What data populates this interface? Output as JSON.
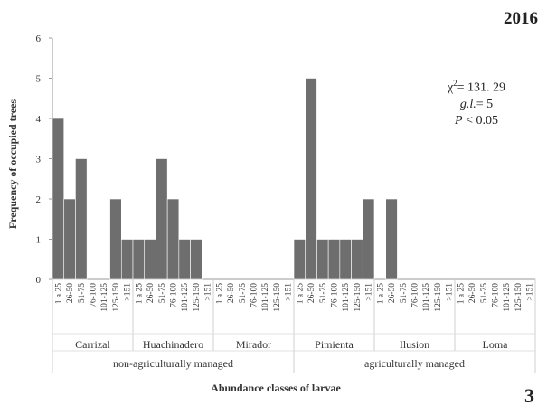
{
  "year": "2016",
  "panel_number": "3",
  "stats": {
    "chi_label": "χ",
    "chi_sup": "2",
    "chi_value": "= 131. 29",
    "gl_label": "g.l.",
    "gl_value": "= 5",
    "p_label": "P",
    "p_value": " < 0.05"
  },
  "chart_data": {
    "type": "bar",
    "xlabel": "Abundance classes of larvae",
    "ylabel": "Frequency of occupied trees",
    "ylim": [
      0,
      6
    ],
    "yticks": [
      0,
      1,
      2,
      3,
      4,
      5,
      6
    ],
    "grid": false,
    "classes": [
      "1 a 25",
      "26-50",
      "51-75",
      "76-100",
      "101-125",
      "125-150",
      ">151"
    ],
    "sites": [
      {
        "name": "Carrizal",
        "values": [
          4,
          2,
          3,
          0,
          0,
          2,
          1
        ]
      },
      {
        "name": "Huachinadero",
        "values": [
          1,
          1,
          3,
          2,
          1,
          1,
          0
        ]
      },
      {
        "name": "Mirador",
        "values": [
          0,
          0,
          0,
          0,
          0,
          0,
          0
        ]
      },
      {
        "name": "Pimienta",
        "values": [
          1,
          5,
          1,
          1,
          1,
          1,
          2
        ]
      },
      {
        "name": "Ilusion",
        "values": [
          0,
          2,
          0,
          0,
          0,
          0,
          0
        ]
      },
      {
        "name": "Loma",
        "values": [
          0,
          0,
          0,
          0,
          0,
          0,
          0
        ]
      }
    ],
    "groups": [
      {
        "name": "non-agriculturally managed",
        "site_count": 3
      },
      {
        "name": "agriculturally managed",
        "site_count": 3
      }
    ],
    "bar_color": "#6e6e6e"
  }
}
